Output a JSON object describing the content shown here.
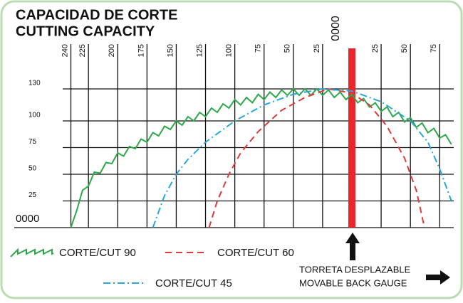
{
  "chart_data": {
    "type": "line",
    "title": "CAPACIDAD DE CORTE",
    "subtitle": "CUTTING CAPACITY",
    "xlim": [
      -247,
      87
    ],
    "ylim": [
      0,
      130
    ],
    "xticks": [
      {
        "value": -240,
        "label": "240"
      },
      {
        "value": -225,
        "label": "225"
      },
      {
        "value": -200,
        "label": "200"
      },
      {
        "value": -175,
        "label": "175"
      },
      {
        "value": -150,
        "label": "150"
      },
      {
        "value": -125,
        "label": "125"
      },
      {
        "value": -100,
        "label": "100"
      },
      {
        "value": -75,
        "label": "75"
      },
      {
        "value": -50,
        "label": "50"
      },
      {
        "value": -25,
        "label": "25"
      },
      {
        "value": 0,
        "label": "0000"
      },
      25,
      50,
      75
    ],
    "yticks": [
      {
        "value": 0,
        "label": "0000"
      },
      25,
      50,
      75,
      100,
      130
    ],
    "grid": true,
    "gauge_color": "#e8262b",
    "series": [
      {
        "name": "CORTE/CUT 90",
        "color": "#2ea84a",
        "style": "zigzag",
        "x": [
          -240,
          -235,
          -230,
          -225,
          -220,
          -215,
          -210,
          -205,
          -200,
          -195,
          -190,
          -185,
          -180,
          -175,
          -170,
          -165,
          -160,
          -155,
          -150,
          -145,
          -140,
          -135,
          -130,
          -125,
          -120,
          -115,
          -110,
          -105,
          -100,
          -95,
          -90,
          -85,
          -80,
          -75,
          -70,
          -65,
          -60,
          -55,
          -50,
          -45,
          -40,
          -35,
          -30,
          -25,
          -20,
          -15,
          -10,
          -5,
          0,
          5,
          10,
          15,
          20,
          25,
          30,
          35,
          40,
          45,
          50,
          55,
          60,
          65,
          70,
          75,
          80,
          85
        ],
        "values": [
          0,
          16,
          35,
          39,
          52,
          51,
          61,
          60,
          70,
          67,
          76,
          74,
          83,
          80,
          89,
          86,
          95,
          92,
          100,
          96,
          104,
          100,
          108,
          104,
          112,
          108,
          116,
          112,
          120,
          115,
          122,
          117,
          125,
          120,
          127,
          122,
          129,
          124,
          130,
          124,
          130,
          124,
          130,
          124,
          129,
          122,
          127,
          120,
          125,
          117,
          121,
          113,
          117,
          109,
          113,
          104,
          108,
          99,
          103,
          94,
          98,
          89,
          93,
          84,
          87,
          78
        ]
      },
      {
        "name": "CORTE/CUT 60",
        "color": "#e03a3a",
        "style": "dashed",
        "x": [
          -122,
          -115,
          -105,
          -95,
          -80,
          -60,
          -40,
          -20,
          0,
          15,
          30,
          45,
          55,
          62
        ],
        "values": [
          0,
          25,
          50,
          70,
          90,
          110,
          122,
          130,
          126,
          115,
          95,
          65,
          35,
          0
        ]
      },
      {
        "name": "CORTE/CUT 45",
        "color": "#2aa7d8",
        "style": "dashdot",
        "x": [
          -170,
          -160,
          -150,
          -140,
          -125,
          -100,
          -75,
          -50,
          -25,
          0,
          25,
          50,
          65,
          75,
          85
        ],
        "values": [
          0,
          30,
          50,
          64,
          80,
          100,
          115,
          125,
          130,
          128,
          118,
          100,
          80,
          55,
          25
        ]
      }
    ],
    "annotation": [
      "TORRETA DESPLAZABLE",
      "MOVABLE BACK GAUGE"
    ]
  }
}
